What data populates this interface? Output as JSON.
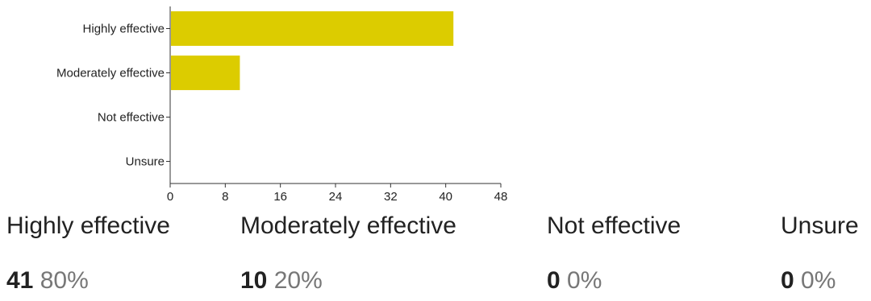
{
  "chart_data": {
    "type": "bar",
    "orientation": "horizontal",
    "categories": [
      "Highly effective",
      "Moderately effective",
      "Not effective",
      "Unsure"
    ],
    "values": [
      41,
      10,
      0,
      0
    ],
    "xlim": [
      0,
      48
    ],
    "xticks": [
      "0",
      "8",
      "16",
      "24",
      "32",
      "40",
      "48"
    ],
    "bar_color": "#dccc00",
    "grid": false
  },
  "summary": [
    {
      "label": "Highly effective",
      "count": "41",
      "percent": "80%"
    },
    {
      "label": "Moderately effective",
      "count": "10",
      "percent": "20%"
    },
    {
      "label": "Not effective",
      "count": "0",
      "percent": "0%"
    },
    {
      "label": "Unsure",
      "count": "0",
      "percent": "0%"
    }
  ]
}
